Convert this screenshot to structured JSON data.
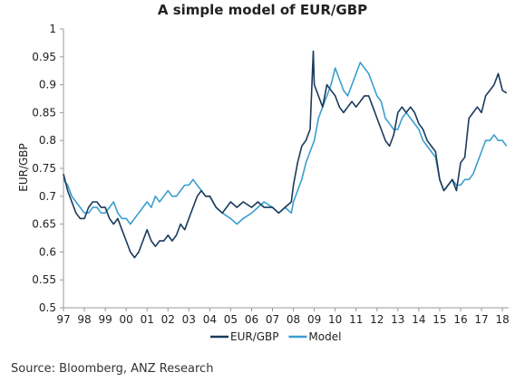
{
  "chart_data": {
    "type": "line",
    "title": "A simple model of EUR/GBP",
    "xlabel": "",
    "ylabel": "EUR/GBP",
    "xlim": [
      1997,
      2018.3
    ],
    "ylim": [
      0.5,
      1.0
    ],
    "yticks": [
      0.5,
      0.55,
      0.6,
      0.65,
      0.7,
      0.75,
      0.8,
      0.85,
      0.9,
      0.95,
      1.0
    ],
    "ytick_labels": [
      "0.5",
      "0.55",
      "0.6",
      "0.65",
      "0.7",
      "0.75",
      "0.8",
      "0.85",
      "0.9",
      "0.95",
      "1"
    ],
    "xticks": [
      "97",
      "98",
      "99",
      "00",
      "01",
      "02",
      "03",
      "04",
      "05",
      "06",
      "07",
      "08",
      "09",
      "10",
      "11",
      "12",
      "13",
      "14",
      "15",
      "16",
      "17",
      "18"
    ],
    "grid": false,
    "legend_position": "bottom",
    "series": [
      {
        "name": "EUR/GBP",
        "color": "#1a3a5c",
        "x": [
          1997.0,
          1997.2,
          1997.4,
          1997.6,
          1997.8,
          1998.0,
          1998.2,
          1998.4,
          1998.6,
          1998.8,
          1999.0,
          1999.2,
          1999.4,
          1999.6,
          1999.8,
          2000.0,
          2000.2,
          2000.4,
          2000.6,
          2000.8,
          2001.0,
          2001.2,
          2001.4,
          2001.6,
          2001.8,
          2002.0,
          2002.2,
          2002.4,
          2002.6,
          2002.8,
          2003.0,
          2003.2,
          2003.4,
          2003.6,
          2003.8,
          2004.0,
          2004.3,
          2004.6,
          2005.0,
          2005.3,
          2005.6,
          2006.0,
          2006.3,
          2006.6,
          2007.0,
          2007.3,
          2007.6,
          2007.9,
          2008.0,
          2008.2,
          2008.4,
          2008.6,
          2008.8,
          2008.95,
          2009.0,
          2009.2,
          2009.4,
          2009.6,
          2009.8,
          2010.0,
          2010.2,
          2010.4,
          2010.6,
          2010.8,
          2011.0,
          2011.2,
          2011.4,
          2011.6,
          2011.8,
          2012.0,
          2012.2,
          2012.4,
          2012.6,
          2012.8,
          2013.0,
          2013.2,
          2013.4,
          2013.6,
          2013.8,
          2014.0,
          2014.2,
          2014.4,
          2014.6,
          2014.8,
          2015.0,
          2015.2,
          2015.4,
          2015.6,
          2015.8,
          2016.0,
          2016.2,
          2016.4,
          2016.6,
          2016.8,
          2017.0,
          2017.2,
          2017.4,
          2017.6,
          2017.8,
          2018.0,
          2018.2
        ],
        "values": [
          0.74,
          0.71,
          0.69,
          0.67,
          0.66,
          0.66,
          0.68,
          0.69,
          0.69,
          0.68,
          0.68,
          0.66,
          0.65,
          0.66,
          0.64,
          0.62,
          0.6,
          0.59,
          0.6,
          0.62,
          0.64,
          0.62,
          0.61,
          0.62,
          0.62,
          0.63,
          0.62,
          0.63,
          0.65,
          0.64,
          0.66,
          0.68,
          0.7,
          0.71,
          0.7,
          0.7,
          0.68,
          0.67,
          0.69,
          0.68,
          0.69,
          0.68,
          0.69,
          0.68,
          0.68,
          0.67,
          0.68,
          0.69,
          0.72,
          0.76,
          0.79,
          0.8,
          0.82,
          0.96,
          0.9,
          0.88,
          0.86,
          0.9,
          0.89,
          0.88,
          0.86,
          0.85,
          0.86,
          0.87,
          0.86,
          0.87,
          0.88,
          0.88,
          0.86,
          0.84,
          0.82,
          0.8,
          0.79,
          0.81,
          0.85,
          0.86,
          0.85,
          0.86,
          0.85,
          0.83,
          0.82,
          0.8,
          0.79,
          0.78,
          0.73,
          0.71,
          0.72,
          0.73,
          0.71,
          0.76,
          0.77,
          0.84,
          0.85,
          0.86,
          0.85,
          0.88,
          0.89,
          0.9,
          0.92,
          0.89,
          0.885
        ]
      },
      {
        "name": "Model",
        "color": "#3a9fce",
        "x": [
          1997.0,
          1997.2,
          1997.4,
          1997.6,
          1997.8,
          1998.0,
          1998.2,
          1998.4,
          1998.6,
          1998.8,
          1999.0,
          1999.2,
          1999.4,
          1999.6,
          1999.8,
          2000.0,
          2000.2,
          2000.4,
          2000.6,
          2000.8,
          2001.0,
          2001.2,
          2001.4,
          2001.6,
          2001.8,
          2002.0,
          2002.2,
          2002.4,
          2002.6,
          2002.8,
          2003.0,
          2003.2,
          2003.4,
          2003.6,
          2003.8,
          2004.0,
          2004.3,
          2004.6,
          2005.0,
          2005.3,
          2005.6,
          2006.0,
          2006.3,
          2006.6,
          2007.0,
          2007.3,
          2007.6,
          2007.9,
          2008.0,
          2008.2,
          2008.4,
          2008.6,
          2008.8,
          2009.0,
          2009.2,
          2009.4,
          2009.6,
          2009.8,
          2010.0,
          2010.2,
          2010.4,
          2010.6,
          2010.8,
          2011.0,
          2011.2,
          2011.4,
          2011.6,
          2011.8,
          2012.0,
          2012.2,
          2012.4,
          2012.6,
          2012.8,
          2013.0,
          2013.2,
          2013.4,
          2013.6,
          2013.8,
          2014.0,
          2014.2,
          2014.4,
          2014.6,
          2014.8,
          2015.0,
          2015.2,
          2015.4,
          2015.6,
          2015.8,
          2016.0,
          2016.2,
          2016.4,
          2016.6,
          2016.8,
          2017.0,
          2017.2,
          2017.4,
          2017.6,
          2017.8,
          2018.0,
          2018.2
        ],
        "values": [
          0.73,
          0.72,
          0.7,
          0.69,
          0.68,
          0.67,
          0.67,
          0.68,
          0.68,
          0.67,
          0.67,
          0.68,
          0.69,
          0.67,
          0.66,
          0.66,
          0.65,
          0.66,
          0.67,
          0.68,
          0.69,
          0.68,
          0.7,
          0.69,
          0.7,
          0.71,
          0.7,
          0.7,
          0.71,
          0.72,
          0.72,
          0.73,
          0.72,
          0.71,
          0.7,
          0.7,
          0.68,
          0.67,
          0.66,
          0.65,
          0.66,
          0.67,
          0.68,
          0.69,
          0.68,
          0.67,
          0.68,
          0.67,
          0.69,
          0.71,
          0.73,
          0.76,
          0.78,
          0.8,
          0.84,
          0.86,
          0.88,
          0.9,
          0.93,
          0.91,
          0.89,
          0.88,
          0.9,
          0.92,
          0.94,
          0.93,
          0.92,
          0.9,
          0.88,
          0.87,
          0.84,
          0.83,
          0.82,
          0.82,
          0.84,
          0.85,
          0.84,
          0.83,
          0.82,
          0.8,
          0.79,
          0.78,
          0.77,
          0.73,
          0.71,
          0.72,
          0.73,
          0.72,
          0.72,
          0.73,
          0.73,
          0.74,
          0.76,
          0.78,
          0.8,
          0.8,
          0.81,
          0.8,
          0.8,
          0.79
        ]
      }
    ],
    "source": "Source: Bloomberg, ANZ Research"
  }
}
